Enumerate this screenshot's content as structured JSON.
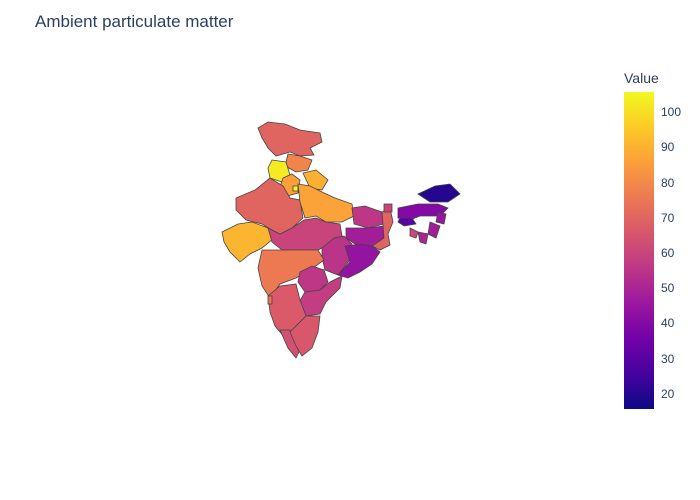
{
  "title": "Ambient particulate matter",
  "colorbar": {
    "title": "Value",
    "min": 16,
    "max": 106,
    "ticks": [
      20,
      30,
      40,
      50,
      60,
      70,
      80,
      90,
      100
    ],
    "colorscale": [
      "#0d0887",
      "#46039f",
      "#7201a8",
      "#9c179e",
      "#bd3786",
      "#d8576b",
      "#ed7953",
      "#fb9f3a",
      "#fdca26",
      "#f0f921"
    ]
  },
  "chart_data": {
    "type": "choropleth",
    "title": "Ambient particulate matter",
    "color_legend_title": "Value",
    "color_range": [
      16,
      106
    ],
    "regions": [
      {
        "name": "Jammu and Kashmir",
        "value": 70
      },
      {
        "name": "Himachal Pradesh",
        "value": 79
      },
      {
        "name": "Punjab",
        "value": 103
      },
      {
        "name": "Uttarakhand",
        "value": 90
      },
      {
        "name": "Haryana",
        "value": 86
      },
      {
        "name": "Delhi",
        "value": 106
      },
      {
        "name": "Rajasthan",
        "value": 70
      },
      {
        "name": "Uttar Pradesh",
        "value": 87
      },
      {
        "name": "Gujarat",
        "value": 91
      },
      {
        "name": "Madhya Pradesh",
        "value": 60
      },
      {
        "name": "Bihar",
        "value": 56
      },
      {
        "name": "Jharkhand",
        "value": 48
      },
      {
        "name": "West Bengal",
        "value": 70
      },
      {
        "name": "Chhattisgarh",
        "value": 55
      },
      {
        "name": "Odisha",
        "value": 44
      },
      {
        "name": "Maharashtra",
        "value": 76
      },
      {
        "name": "Telangana",
        "value": 56
      },
      {
        "name": "Andhra Pradesh",
        "value": 58
      },
      {
        "name": "Karnataka",
        "value": 67
      },
      {
        "name": "Goa",
        "value": 74
      },
      {
        "name": "Kerala",
        "value": 64
      },
      {
        "name": "Tamil Nadu",
        "value": 66
      },
      {
        "name": "Sikkim",
        "value": 60
      },
      {
        "name": "Arunachal Pradesh",
        "value": 20
      },
      {
        "name": "Assam",
        "value": 40
      },
      {
        "name": "Meghalaya",
        "value": 30
      },
      {
        "name": "Nagaland",
        "value": 45
      },
      {
        "name": "Manipur",
        "value": 48
      },
      {
        "name": "Mizoram",
        "value": 50
      },
      {
        "name": "Tripura",
        "value": 62
      }
    ]
  }
}
